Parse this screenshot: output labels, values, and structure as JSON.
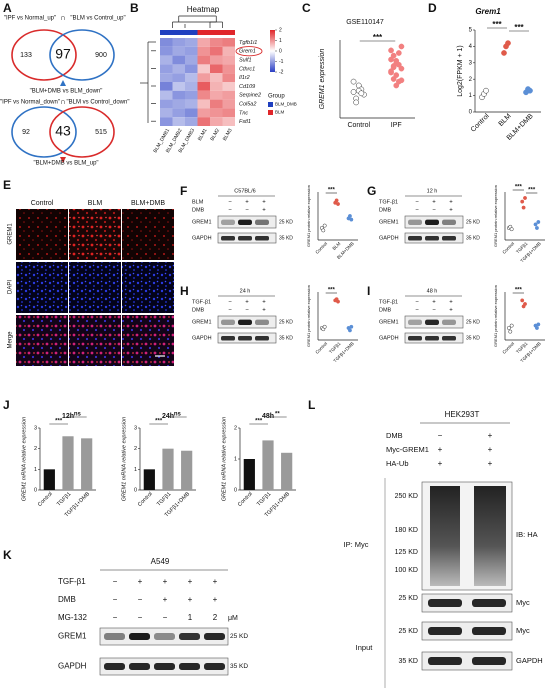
{
  "figure": {
    "A": {
      "letter": "A",
      "upregulated": {
        "left_set": "\"IPF vs Normal_up\"",
        "operator": "∩",
        "right_set": "\"BLM vs Control_up\"",
        "left_only": 133,
        "overlap": 97,
        "right_only": 900,
        "filter": "\"BLM+DMB vs BLM_down\""
      },
      "downregulated": {
        "left_set": "\"IPF vs Normal_down\"",
        "operator": "∩",
        "right_set": "\"BLM vs Control_down\"",
        "left_only": 92,
        "overlap": 43,
        "right_only": 515,
        "filter": "\"BLM+DMB vs BLM_up\""
      }
    },
    "B": {
      "letter": "B",
      "title": "Heatmap",
      "genes": [
        "Tgfb1i1",
        "Grem1",
        "Sulf1",
        "Cthrc1",
        "Il1r2",
        "Cd109",
        "Serpine2",
        "Col5a2",
        "Tnc",
        "Fstl1"
      ],
      "highlight": 1,
      "samples": [
        "BLM_DMB1",
        "BLM_DMB2",
        "BLM_DMB3",
        "BLM1",
        "BLM2",
        "BLM3"
      ],
      "sample_groups": [
        0,
        0,
        0,
        1,
        1,
        1
      ],
      "matrix": [
        [
          -1.2,
          -1.0,
          -0.9,
          0.8,
          1.1,
          1.2
        ],
        [
          -1.1,
          -0.9,
          -1.0,
          1.0,
          1.3,
          0.7
        ],
        [
          -0.8,
          -1.2,
          -0.9,
          1.2,
          0.9,
          0.8
        ],
        [
          -1.0,
          -0.8,
          -1.1,
          0.5,
          1.4,
          1.0
        ],
        [
          -0.9,
          -1.0,
          -0.7,
          0.9,
          0.6,
          1.1
        ],
        [
          -1.3,
          -0.6,
          -0.8,
          1.5,
          0.7,
          0.5
        ],
        [
          -0.7,
          -1.1,
          -1.0,
          1.1,
          0.8,
          0.9
        ],
        [
          -1.0,
          -0.9,
          -0.8,
          0.6,
          1.2,
          0.9
        ],
        [
          -0.8,
          -1.0,
          -1.2,
          0.9,
          1.0,
          1.1
        ],
        [
          -1.1,
          -0.7,
          -0.9,
          1.3,
          0.8,
          0.6
        ]
      ],
      "clim": [
        -2,
        2
      ],
      "scale_ticks": [
        2,
        1,
        0,
        -1,
        -2
      ],
      "legend_title": "Group",
      "groups": [
        {
          "name": "BLM_DMB",
          "color": "#1f3fbf"
        },
        {
          "name": "BLM",
          "color": "#e0262a"
        }
      ]
    },
    "C": {
      "letter": "C",
      "title": "GSE110147",
      "ylabel": "GREM1 expression",
      "categories": [
        "Control",
        "IPF"
      ],
      "colors": [
        "#ffffff",
        "#f28080"
      ],
      "ylim": [
        5,
        11
      ],
      "points": [
        [
          7.0,
          6.5,
          7.5,
          7.2,
          6.8,
          7.8,
          6.2,
          7.1,
          6.9
        ],
        [
          8.5,
          9.0,
          7.5,
          10.0,
          8.8,
          9.5,
          8.0,
          9.2,
          7.8,
          10.5,
          8.6,
          9.8,
          8.3,
          9.1,
          7.9,
          10.2,
          8.9,
          9.4
        ]
      ],
      "sig": [
        "***"
      ]
    },
    "D": {
      "letter": "D",
      "title": "Grem1",
      "ylabel": "Log2(FPKM + 1)",
      "categories": [
        "Control",
        "BLM",
        "BLM+DMB"
      ],
      "colors": [
        "#ffffff",
        "#e05a4a",
        "#5b8fd6"
      ],
      "ylim": [
        0,
        5
      ],
      "yticks": [
        0,
        1,
        2,
        3,
        4,
        5
      ],
      "points": [
        [
          0.9,
          1.1,
          1.3
        ],
        [
          3.6,
          4.0,
          4.2
        ],
        [
          1.2,
          1.4,
          1.3
        ]
      ],
      "sig": [
        "***",
        "***"
      ]
    },
    "E": {
      "letter": "E",
      "columns": [
        "Control",
        "BLM",
        "BLM+DMB"
      ],
      "rows": [
        "GREM1",
        "DAPI",
        "Merge"
      ],
      "scale_bar": "50 μm"
    },
    "F": {
      "letter": "F",
      "header": "C57BL/6",
      "conditions": [
        {
          "label": "BLM",
          "signs": [
            "−",
            "+",
            "+"
          ]
        },
        {
          "label": "DMB",
          "signs": [
            "−",
            "−",
            "+"
          ]
        }
      ],
      "bands": [
        "GREM1",
        "GAPDH"
      ],
      "markers": [
        "25 KD",
        "35 KD"
      ],
      "chart": {
        "ylabel": "GREM1 protein relative expression",
        "categories": [
          "Control",
          "BLM",
          "BLM+DMB"
        ],
        "colors": [
          "#ffffff",
          "#e05a4a",
          "#5b8fd6"
        ],
        "ylim": [
          0,
          4
        ],
        "points": [
          [
            1.0,
            0.8,
            1.2
          ],
          [
            3.1,
            3.3,
            3.0
          ],
          [
            1.8,
            2.0,
            1.7
          ]
        ],
        "sig": [
          "***"
        ]
      }
    },
    "G": {
      "letter": "G",
      "header": "12 h",
      "conditions": [
        {
          "label": "TGF-β1",
          "signs": [
            "−",
            "+",
            "+"
          ]
        },
        {
          "label": "DMB",
          "signs": [
            "−",
            "−",
            "+"
          ]
        }
      ],
      "bands": [
        "GREM1",
        "GAPDH"
      ],
      "markers": [
        "25 KD",
        "35 KD"
      ],
      "chart": {
        "ylabel": "GREM1 protein relative expression",
        "categories": [
          "Control",
          "TGFβ1",
          "TGFβ1+DMB"
        ],
        "colors": [
          "#ffffff",
          "#e05a4a",
          "#5b8fd6"
        ],
        "ylim": [
          0,
          4
        ],
        "points": [
          [
            1.0,
            1.1,
            0.9
          ],
          [
            3.2,
            2.7,
            3.5
          ],
          [
            1.3,
            1.0,
            1.5
          ]
        ],
        "sig": [
          "***",
          "***"
        ]
      }
    },
    "H": {
      "letter": "H",
      "header": "24 h",
      "conditions": [
        {
          "label": "TGF-β1",
          "signs": [
            "−",
            "+",
            "+"
          ]
        },
        {
          "label": "DMB",
          "signs": [
            "−",
            "−",
            "+"
          ]
        }
      ],
      "bands": [
        "GREM1",
        "GAPDH"
      ],
      "markers": [
        "25 KD",
        "35 KD"
      ],
      "chart": {
        "ylabel": "GREM1 protein relative expression",
        "categories": [
          "Control",
          "TGFβ1",
          "TGFβ1+DMB"
        ],
        "colors": [
          "#ffffff",
          "#e05a4a",
          "#5b8fd6"
        ],
        "ylim": [
          0,
          4
        ],
        "points": [
          [
            1.0,
            0.9,
            1.1
          ],
          [
            3.3,
            3.4,
            3.2
          ],
          [
            1.0,
            0.8,
            1.1
          ]
        ],
        "sig": [
          "***"
        ]
      }
    },
    "I": {
      "letter": "I",
      "header": "48 h",
      "conditions": [
        {
          "label": "TGF-β1",
          "signs": [
            "−",
            "+",
            "+"
          ]
        },
        {
          "label": "DMB",
          "signs": [
            "−",
            "−",
            "+"
          ]
        }
      ],
      "bands": [
        "GREM1",
        "GAPDH"
      ],
      "markers": [
        "25 KD",
        "35 KD"
      ],
      "chart": {
        "ylabel": "GREM1 protein relative expression",
        "categories": [
          "Control",
          "TGFβ1",
          "TGFβ1+DMB"
        ],
        "colors": [
          "#ffffff",
          "#e05a4a",
          "#5b8fd6"
        ],
        "ylim": [
          0,
          4
        ],
        "points": [
          [
            1.0,
            0.7,
            1.2
          ],
          [
            3.3,
            2.8,
            3.0
          ],
          [
            1.2,
            1.0,
            1.3
          ]
        ],
        "sig": [
          "***"
        ]
      }
    },
    "J": {
      "letter": "J",
      "ylabel": "GREM1 mRNA relative expression",
      "categories": [
        "Control",
        "TGFβ1",
        "TGFβ1+DMB"
      ],
      "colors": [
        "#111111",
        "#9a9a9a",
        "#9a9a9a"
      ],
      "charts": [
        {
          "title": "12h",
          "values": [
            1.0,
            2.6,
            2.5
          ],
          "ylim": [
            0,
            3
          ],
          "yticks": [
            0,
            1,
            2,
            3
          ],
          "sig": [
            "***",
            "ns"
          ]
        },
        {
          "title": "24h",
          "values": [
            1.0,
            2.0,
            1.9
          ],
          "ylim": [
            0,
            3
          ],
          "yticks": [
            0,
            1,
            2,
            3
          ],
          "sig": [
            "***",
            "ns"
          ]
        },
        {
          "title": "48h",
          "values": [
            1.0,
            1.6,
            1.2
          ],
          "ylim": [
            0,
            2
          ],
          "yticks": [
            0,
            1,
            2
          ],
          "sig": [
            "***",
            "**"
          ]
        }
      ]
    },
    "K": {
      "letter": "K",
      "header": "A549",
      "conditions": [
        {
          "label": "TGF-β1",
          "signs": [
            "−",
            "+",
            "+",
            "+",
            "+"
          ]
        },
        {
          "label": "DMB",
          "signs": [
            "−",
            "−",
            "+",
            "+",
            "+"
          ]
        },
        {
          "label": "MG-132",
          "signs": [
            "−",
            "−",
            "−",
            "1",
            "2"
          ]
        }
      ],
      "unit": "μM",
      "bands": [
        "GREM1",
        "GAPDH"
      ],
      "markers": [
        "25 KD",
        "35 KD"
      ]
    },
    "L": {
      "letter": "L",
      "header": "HEK293T",
      "conditions": [
        {
          "label": "DMB",
          "signs": [
            "−",
            "+"
          ]
        },
        {
          "label": "Myc-GREM1",
          "signs": [
            "+",
            "+"
          ]
        },
        {
          "label": "HA-Ub",
          "signs": [
            "+",
            "+"
          ]
        }
      ],
      "ip_label": "IP: Myc",
      "ib_label": "IB: HA",
      "ip_markers": [
        "250 KD",
        "180 KD",
        "125 KD",
        "100 KD"
      ],
      "ip_myc": "Myc",
      "ip_myc_marker": "25 KD",
      "input_label": "Input",
      "input_bands": [
        "Myc",
        "GAPDH"
      ],
      "input_markers": [
        "25 KD",
        "35 KD"
      ]
    }
  }
}
